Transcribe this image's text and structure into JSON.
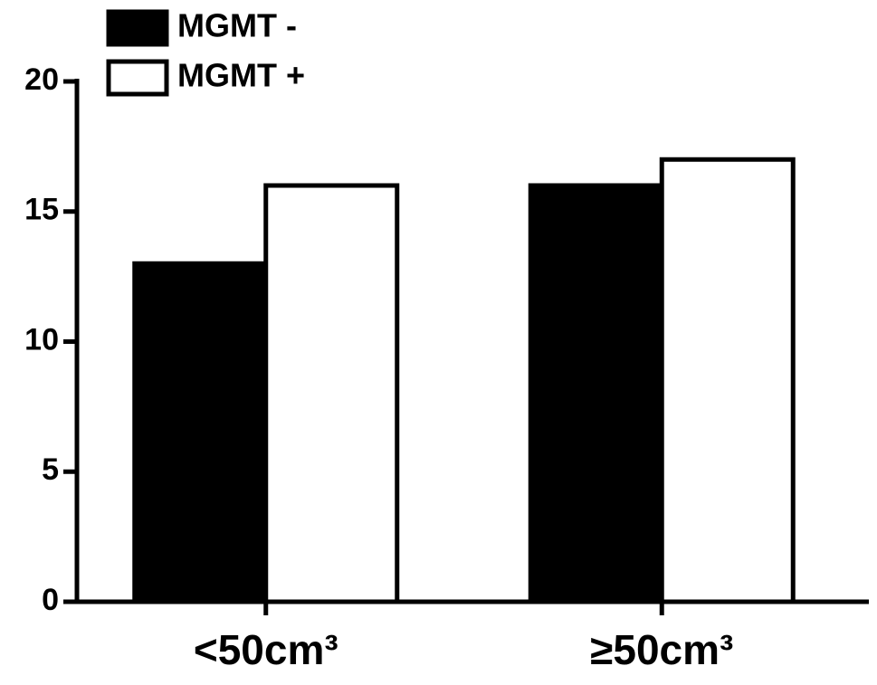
{
  "chart_data": {
    "type": "bar",
    "categories": [
      "<50cm³",
      "≥50cm³"
    ],
    "series": [
      {
        "name": "MGMT -",
        "color": "#000000",
        "values": [
          13,
          16
        ]
      },
      {
        "name": "MGMT +",
        "color": "#ffffff",
        "values": [
          16,
          17
        ]
      }
    ],
    "ylim": [
      0,
      20
    ],
    "yticks": [
      0,
      5,
      10,
      15,
      20
    ],
    "legend": "top-left"
  }
}
